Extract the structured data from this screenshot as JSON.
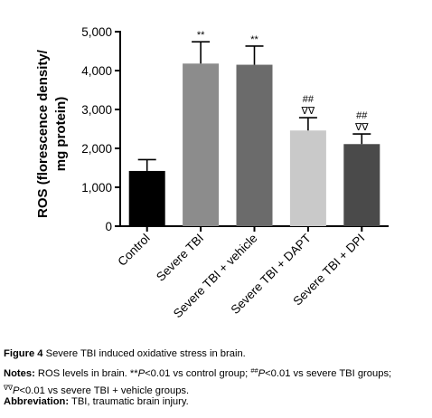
{
  "chart_data": {
    "type": "bar",
    "ylabel_line1": "ROS (florescence density/",
    "ylabel_line2": "mg protein)",
    "ylim": [
      0,
      5000
    ],
    "yticks": [
      0,
      1000,
      2000,
      3000,
      4000,
      5000
    ],
    "ytick_labels": [
      "0",
      "1,000",
      "2,000",
      "3,000",
      "4,000",
      "5,000"
    ],
    "categories": [
      "Control",
      "Severe TBI",
      "Severe TBI + vehicle",
      "Severe TBI + DAPT",
      "Severe TBI + DPI"
    ],
    "values": [
      1420,
      4180,
      4150,
      2460,
      2110
    ],
    "errors": [
      290,
      560,
      480,
      330,
      260
    ],
    "bar_colors": [
      "#000000",
      "#8c8c8c",
      "#6b6b6b",
      "#c9c9c9",
      "#4a4a4a"
    ],
    "annotations": [
      [],
      [
        "**"
      ],
      [
        "**"
      ],
      [
        "##",
        "∇∇"
      ],
      [
        "##",
        "∇∇"
      ]
    ],
    "grid": false
  },
  "caption": {
    "figure_label": "Figure 4",
    "figure_text": " Severe TBI induced oxidative stress in brain.",
    "notes_label": "Notes:",
    "notes_text1": " ROS levels in brain. **",
    "notes_p1": "P",
    "notes_text2": "<0.01 vs control group; ",
    "notes_sup1": "##",
    "notes_p2": "P",
    "notes_text3": "<0.01 vs severe TBI groups; ",
    "notes_sup2": "∇∇",
    "notes_p3": "P",
    "notes_text4": "<0.01 vs severe TBI + vehicle groups.",
    "abbr_label": "Abbreviation:",
    "abbr_text": " TBI, traumatic brain injury."
  }
}
